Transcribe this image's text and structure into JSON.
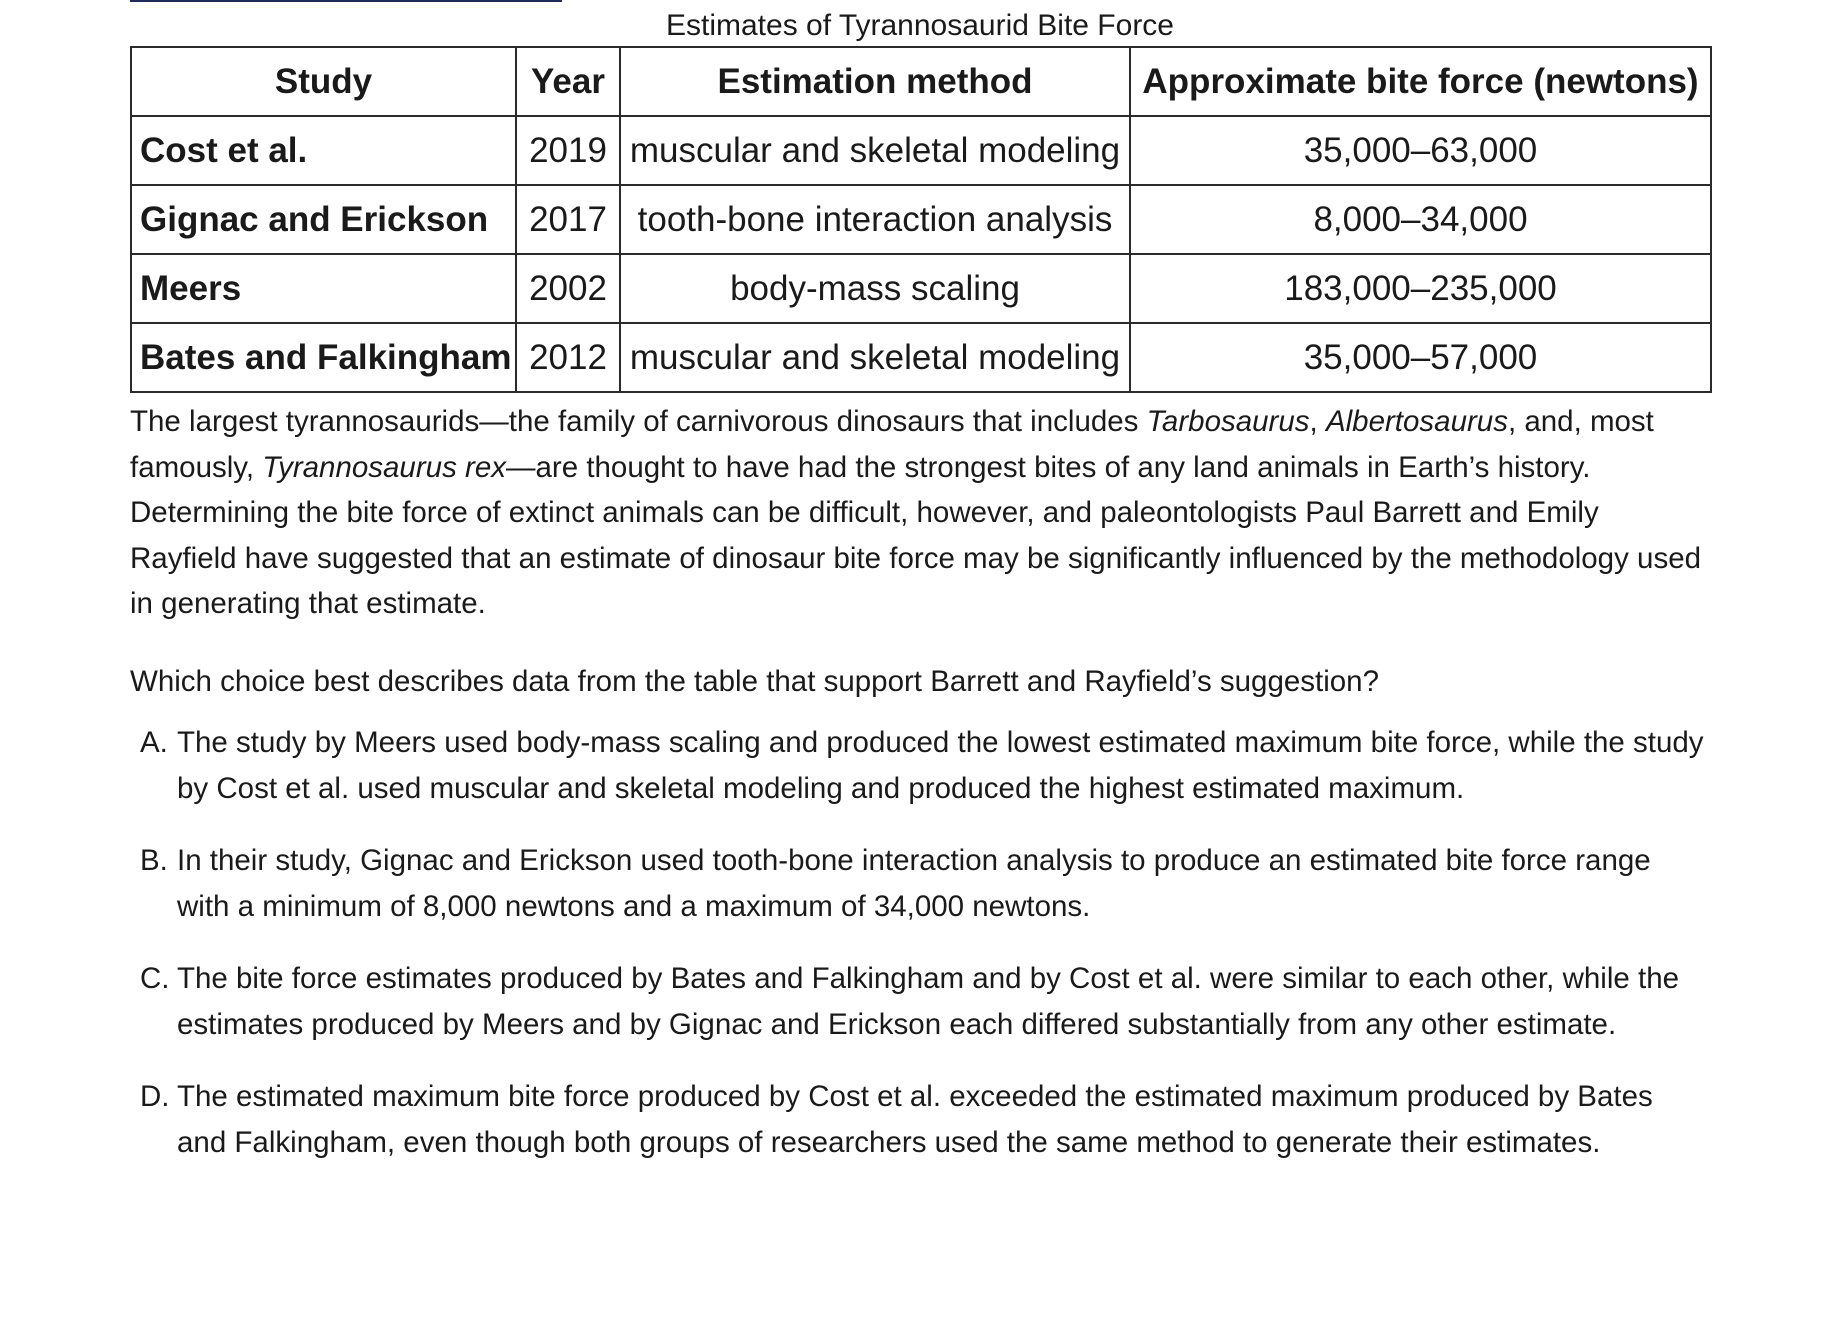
{
  "table": {
    "caption": "Estimates of Tyrannosaurid Bite Force",
    "headers": [
      "Study",
      "Year",
      "Estimation method",
      "Approximate bite force (newtons)"
    ],
    "rows": [
      {
        "study": "Cost et al.",
        "year": "2019",
        "method": "muscular and skeletal modeling",
        "force": "35,000–63,000"
      },
      {
        "study": "Gignac and Erickson",
        "year": "2017",
        "method": "tooth-bone interaction analysis",
        "force": "8,000–34,000"
      },
      {
        "study": "Meers",
        "year": "2002",
        "method": "body-mass scaling",
        "force": "183,000–235,000"
      },
      {
        "study": "Bates and Falkingham",
        "year": "2012",
        "method": "muscular and skeletal modeling",
        "force": "35,000–57,000"
      }
    ]
  },
  "passage": {
    "part1": "The largest tyrannosaurids—the family of carnivorous dinosaurs that includes ",
    "italic1": "Tarbosaurus",
    "part2": ", ",
    "italic2": "Albertosaurus",
    "part3": ", and, most famously, ",
    "italic3": "Tyrannosaurus rex",
    "part4": "—are thought to have had the strongest bites of any land animals in Earth’s history. Determining the bite force of extinct animals can be difficult, however, and paleontologists Paul Barrett and Emily Rayfield have suggested that an estimate of dinosaur bite force may be significantly influenced by the methodology used in generating that estimate."
  },
  "question": "Which choice best describes data from the table that support Barrett and Rayfield’s suggestion?",
  "choices": [
    {
      "letter": "A.",
      "text": "The study by Meers used body-mass scaling and produced the lowest estimated maximum bite force, while the study by Cost et al. used muscular and skeletal modeling and produced the highest estimated maximum."
    },
    {
      "letter": "B.",
      "text": "In their study, Gignac and Erickson used tooth-bone interaction analysis to produce an estimated bite force range with a minimum of 8,000 newtons and a maximum of 34,000 newtons."
    },
    {
      "letter": "C.",
      "text": "The bite force estimates produced by Bates and Falkingham and by Cost et al. were similar to each other, while the estimates produced by Meers and by Gignac and Erickson each differed substantially from any other estimate."
    },
    {
      "letter": "D.",
      "text": "The estimated maximum bite force produced by Cost et al. exceeded the estimated maximum produced by Bates and Falkingham, even though both groups of researchers used the same method to generate their estimates."
    }
  ]
}
